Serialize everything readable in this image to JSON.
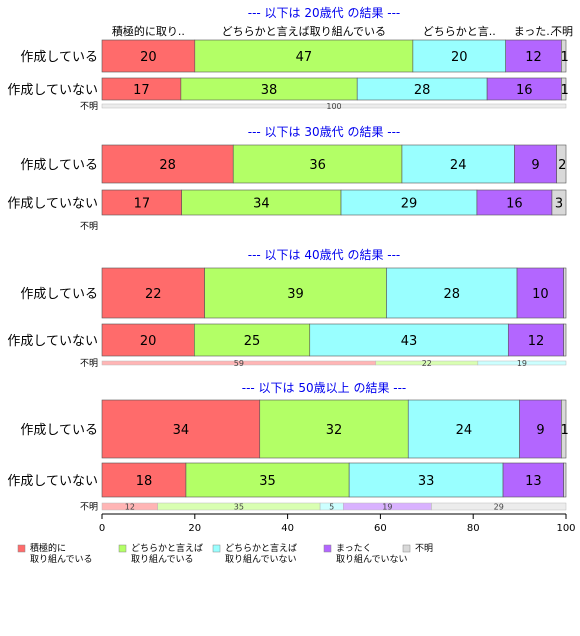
{
  "chart_data": {
    "type": "bar",
    "orientation": "horizontal",
    "stacked": "percent",
    "xlim": [
      0,
      100
    ],
    "x_ticks": [
      "0",
      "20",
      "40",
      "60",
      "80",
      "100"
    ],
    "categories_order": [
      "積極的に取り組んでいる",
      "どちらかと言えば取り組んでいる",
      "どちらかと言えば取り組んでいない",
      "まったく取り組んでいない",
      "不明"
    ],
    "header_labels": [
      "積極的に取り..",
      "どちらかと言えば取り組んでいる",
      "どちらかと言..",
      "まった..",
      "不明"
    ],
    "colors": [
      "#ff6b6b",
      "#b3ff66",
      "#99ffff",
      "#b366ff",
      "#d9d9d9"
    ],
    "legend": [
      {
        "line1": "積極的に",
        "line2": "取り組んでいる",
        "color": "#ff6b6b"
      },
      {
        "line1": "どちらかと言えば",
        "line2": "取り組んでいる",
        "color": "#b3ff66"
      },
      {
        "line1": "どちらかと言えば",
        "line2": "取り組んでいない",
        "color": "#99ffff"
      },
      {
        "line1": "まったく",
        "line2": "取り組んでいない",
        "color": "#b366ff"
      },
      {
        "line1": "不明",
        "line2": "",
        "color": "#d9d9d9"
      }
    ],
    "panels": [
      {
        "title": "--- 以下は 20歳代 の結果 ---",
        "rows": [
          {
            "label": "作成している",
            "values": [
              20,
              47,
              20,
              12,
              1
            ],
            "labels": [
              "20",
              "47",
              "20",
              "12",
              "1"
            ]
          },
          {
            "label": "作成していない",
            "values": [
              17,
              38,
              28,
              16,
              1
            ],
            "labels": [
              "17",
              "38",
              "28",
              "16",
              "1"
            ]
          },
          {
            "label": "不明",
            "values": [
              0,
              0,
              0,
              0,
              100
            ],
            "labels": [
              "",
              "",
              "",
              "",
              "100"
            ]
          }
        ]
      },
      {
        "title": "--- 以下は 30歳代 の結果 ---",
        "rows": [
          {
            "label": "作成している",
            "values": [
              28,
              36,
              24,
              9,
              2
            ],
            "labels": [
              "28",
              "36",
              "24",
              "9",
              "2"
            ]
          },
          {
            "label": "作成していない",
            "values": [
              17,
              34,
              29,
              16,
              3
            ],
            "labels": [
              "17",
              "34",
              "29",
              "16",
              "3"
            ]
          },
          {
            "label": "不明",
            "values": [
              0,
              0,
              0,
              0,
              0
            ],
            "labels": [
              "",
              "",
              "",
              "",
              ""
            ]
          }
        ]
      },
      {
        "title": "--- 以下は 40歳代 の結果 ---",
        "rows": [
          {
            "label": "作成している",
            "values": [
              22,
              39,
              28,
              10,
              0.5
            ],
            "labels": [
              "22",
              "39",
              "28",
              "10",
              ""
            ]
          },
          {
            "label": "作成していない",
            "values": [
              20,
              25,
              43,
              12,
              0.5
            ],
            "labels": [
              "20",
              "25",
              "43",
              "12",
              ""
            ]
          },
          {
            "label": "不明",
            "values": [
              59,
              22,
              19,
              0,
              0
            ],
            "labels": [
              "59",
              "22",
              "19",
              "",
              ""
            ]
          }
        ]
      },
      {
        "title": "--- 以下は 50歳以上 の結果 ---",
        "rows": [
          {
            "label": "作成している",
            "values": [
              34,
              32,
              24,
              9,
              1
            ],
            "labels": [
              "34",
              "32",
              "24",
              "9",
              "1"
            ]
          },
          {
            "label": "作成していない",
            "values": [
              18,
              35,
              33,
              13,
              0.5
            ],
            "labels": [
              "18",
              "35",
              "33",
              "13",
              ""
            ]
          },
          {
            "label": "不明",
            "values": [
              12,
              35,
              5,
              19,
              29
            ],
            "labels": [
              "12",
              "35",
              "5",
              "19",
              "29"
            ]
          }
        ]
      }
    ]
  }
}
